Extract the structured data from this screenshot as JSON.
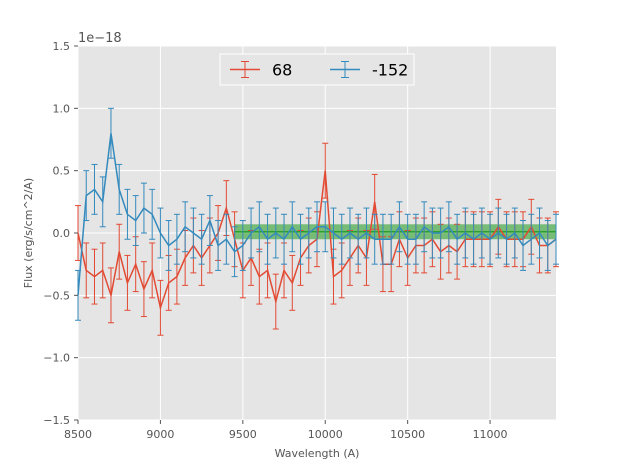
{
  "chart_data": {
    "type": "line",
    "xlabel": "Wavelength (A)",
    "ylabel": "Flux (erg/s/cm^2/A)",
    "offset_label": "1e−18",
    "xlim": [
      8500,
      11400
    ],
    "ylim": [
      -1.5,
      1.5
    ],
    "xticks": [
      8500,
      9000,
      9500,
      10000,
      10500,
      11000
    ],
    "xtick_labels": [
      "8500",
      "9000",
      "9500",
      "10000",
      "10500",
      "11000"
    ],
    "yticks": [
      -1.5,
      -1.0,
      -0.5,
      0.0,
      0.5,
      1.0,
      1.5
    ],
    "ytick_labels": [
      "−1.5",
      "−1.0",
      "−0.5",
      "0.0",
      "0.5",
      "1.0",
      "1.5"
    ],
    "grid": true,
    "legend_position": "top-center",
    "band": {
      "x_start": 9450,
      "x_end": 11400,
      "y_low": -0.05,
      "y_high": 0.07,
      "line_y": 0.01,
      "color": "#2ca02c"
    },
    "series": [
      {
        "name": "68",
        "color": "#e24a33",
        "x": [
          8500,
          8550,
          8600,
          8650,
          8700,
          8750,
          8800,
          8850,
          8900,
          8950,
          9000,
          9050,
          9100,
          9150,
          9200,
          9250,
          9300,
          9350,
          9400,
          9450,
          9500,
          9550,
          9600,
          9650,
          9700,
          9750,
          9800,
          9850,
          9900,
          9950,
          10000,
          10050,
          10100,
          10150,
          10200,
          10250,
          10300,
          10350,
          10400,
          10450,
          10500,
          10550,
          10600,
          10650,
          10700,
          10750,
          10800,
          10850,
          10900,
          10950,
          11000,
          11050,
          11100,
          11150,
          11200,
          11250,
          11300,
          11350,
          11400
        ],
        "y": [
          0.0,
          -0.3,
          -0.35,
          -0.3,
          -0.5,
          -0.15,
          -0.4,
          -0.25,
          -0.45,
          -0.3,
          -0.6,
          -0.4,
          -0.35,
          -0.2,
          -0.1,
          -0.2,
          -0.1,
          0.0,
          0.2,
          -0.05,
          -0.3,
          -0.2,
          -0.35,
          -0.3,
          -0.55,
          -0.3,
          -0.4,
          -0.2,
          -0.1,
          -0.05,
          0.5,
          -0.35,
          -0.3,
          -0.2,
          -0.1,
          -0.2,
          0.25,
          -0.25,
          -0.25,
          -0.05,
          -0.2,
          -0.1,
          -0.1,
          -0.05,
          -0.15,
          -0.1,
          -0.15,
          -0.05,
          -0.05,
          -0.05,
          -0.05,
          0.05,
          -0.05,
          -0.05,
          -0.05,
          0.05,
          -0.1,
          -0.1,
          -0.05
        ],
        "err": 0.22
      },
      {
        "name": "-152",
        "color": "#348abd",
        "x": [
          8500,
          8550,
          8600,
          8650,
          8700,
          8750,
          8800,
          8850,
          8900,
          8950,
          9000,
          9050,
          9100,
          9150,
          9200,
          9250,
          9300,
          9350,
          9400,
          9450,
          9500,
          9550,
          9600,
          9650,
          9700,
          9750,
          9800,
          9850,
          9900,
          9950,
          10000,
          10050,
          10100,
          10150,
          10200,
          10250,
          10300,
          10350,
          10400,
          10450,
          10500,
          10550,
          10600,
          10650,
          10700,
          10750,
          10800,
          10850,
          10900,
          10950,
          11000,
          11050,
          11100,
          11150,
          11200,
          11250,
          11300,
          11350,
          11400
        ],
        "y": [
          -0.5,
          0.3,
          0.35,
          0.25,
          0.8,
          0.35,
          0.15,
          0.1,
          0.2,
          0.15,
          0.0,
          -0.1,
          -0.05,
          0.05,
          0.0,
          -0.05,
          0.1,
          -0.1,
          -0.05,
          -0.15,
          -0.1,
          0.0,
          0.05,
          -0.05,
          0.0,
          -0.05,
          0.05,
          -0.05,
          0.0,
          0.05,
          0.05,
          0.0,
          -0.05,
          0.0,
          -0.05,
          0.0,
          -0.05,
          -0.05,
          -0.05,
          0.05,
          -0.05,
          -0.05,
          0.05,
          0.0,
          0.0,
          0.05,
          -0.05,
          0.0,
          -0.05,
          0.0,
          -0.05,
          0.0,
          -0.05,
          0.0,
          -0.1,
          -0.05,
          0.0,
          -0.1,
          -0.05
        ],
        "err": 0.2
      }
    ]
  }
}
